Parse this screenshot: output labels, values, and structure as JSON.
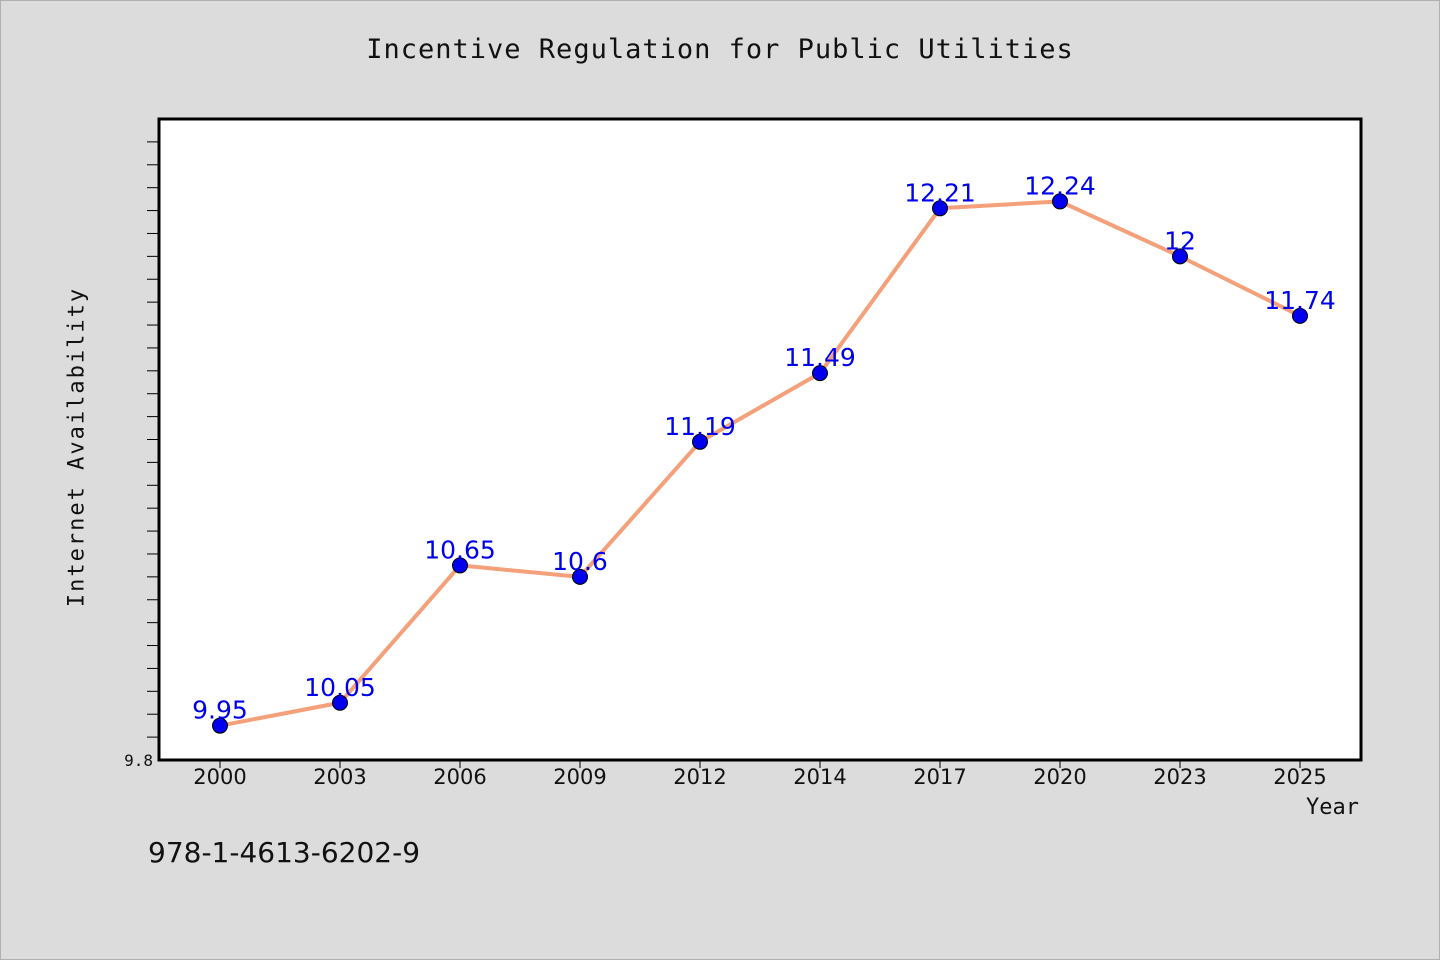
{
  "chart_data": {
    "type": "line",
    "title": "Incentive Regulation for Public Utilities",
    "xlabel": "Year",
    "ylabel": "Internet Availability",
    "categories": [
      "2000",
      "2003",
      "2006",
      "2009",
      "2012",
      "2014",
      "2017",
      "2020",
      "2023",
      "2025"
    ],
    "series": [
      {
        "values": [
          9.95,
          10.05,
          10.65,
          10.6,
          11.19,
          11.49,
          12.21,
          12.24,
          12.0,
          11.74
        ],
        "labels": [
          "9.95",
          "10.05",
          "10.65",
          "10.6",
          "11.19",
          "11.49",
          "12.21",
          "12.24",
          "12",
          "11.74"
        ]
      }
    ],
    "ylim": [
      9.8,
      12.6
    ],
    "ytick_labels": [
      "9.8"
    ],
    "grid": false,
    "colors": {
      "line": "#f4a07a",
      "marker": "#0000ee",
      "data_label": "#0000ee",
      "plot_background": "#ffffff",
      "page_background": "#dcdcdc"
    }
  },
  "footnote": "978-1-4613-6202-9"
}
